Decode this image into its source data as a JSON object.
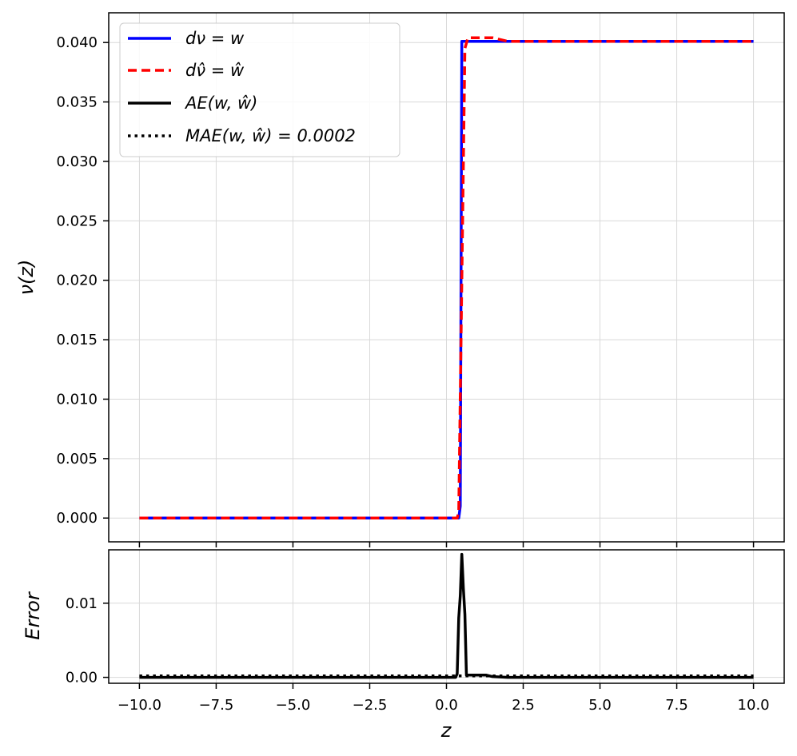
{
  "chart_data": [
    {
      "type": "line",
      "ylabel": "ν(z)",
      "xlim": [
        -11.0,
        11.0
      ],
      "ylim": [
        -0.002,
        0.0425
      ],
      "xticks": [
        -10.0,
        -7.5,
        -5.0,
        -2.5,
        0.0,
        2.5,
        5.0,
        7.5,
        10.0
      ],
      "yticks": [
        0.0,
        0.005,
        0.01,
        0.015,
        0.02,
        0.025,
        0.03,
        0.035,
        0.04
      ],
      "ytick_labels": [
        "0.000",
        "0.005",
        "0.010",
        "0.015",
        "0.020",
        "0.025",
        "0.030",
        "0.035",
        "0.040"
      ],
      "grid": true,
      "legend_position": "top-left",
      "legend": [
        {
          "label": "dν = w",
          "color": "#0000ff",
          "style": "solid"
        },
        {
          "label": "dν̂ = ŵ",
          "color": "#ff0000",
          "style": "dashed"
        },
        {
          "label": "AE(w, ŵ)",
          "color": "#000000",
          "style": "solid"
        },
        {
          "label": "MAE(w, ŵ) = 0.0002",
          "color": "#000000",
          "style": "dotted"
        }
      ],
      "series": [
        {
          "name": "dν = w",
          "color": "#0000ff",
          "x": [
            -10.0,
            0.4,
            0.45,
            0.5,
            10.0
          ],
          "y": [
            0.0,
            0.0,
            0.001,
            0.0401,
            0.0401
          ]
        },
        {
          "name": "dν̂ = ŵ",
          "color": "#ff0000",
          "x": [
            -10.0,
            0.35,
            0.4,
            0.6,
            0.7,
            1.0,
            1.5,
            2.0,
            10.0
          ],
          "y": [
            0.0,
            0.0,
            0.0005,
            0.0395,
            0.0404,
            0.0404,
            0.0404,
            0.0401,
            0.0401
          ]
        }
      ]
    },
    {
      "type": "line",
      "xlabel": "z",
      "ylabel": "Error",
      "xlim": [
        -11.0,
        11.0
      ],
      "ylim": [
        -0.0008,
        0.0172
      ],
      "xticks": [
        -10.0,
        -7.5,
        -5.0,
        -2.5,
        0.0,
        2.5,
        5.0,
        7.5,
        10.0
      ],
      "xtick_labels": [
        "−10.0",
        "−7.5",
        "−5.0",
        "−2.5",
        "0.0",
        "2.5",
        "5.0",
        "7.5",
        "10.0"
      ],
      "yticks": [
        0.0,
        0.01
      ],
      "ytick_labels": [
        "0.00",
        "0.01"
      ],
      "grid": true,
      "series": [
        {
          "name": "AE(w, ŵ)",
          "color": "#000000",
          "style": "solid",
          "x": [
            -10.0,
            0.3,
            0.35,
            0.4,
            0.45,
            0.5,
            0.55,
            0.6,
            0.65,
            0.7,
            1.0,
            1.3,
            1.5,
            2.0,
            10.0
          ],
          "y": [
            0.0,
            0.0,
            0.0005,
            0.008,
            0.011,
            0.0166,
            0.012,
            0.0085,
            0.0003,
            0.0003,
            0.0003,
            0.0003,
            0.0001,
            0.0,
            0.0
          ]
        },
        {
          "name": "MAE(w, ŵ) = 0.0002",
          "color": "#000000",
          "style": "dotted",
          "x": [
            -10.0,
            10.0
          ],
          "y": [
            0.0002,
            0.0002
          ]
        }
      ]
    }
  ]
}
